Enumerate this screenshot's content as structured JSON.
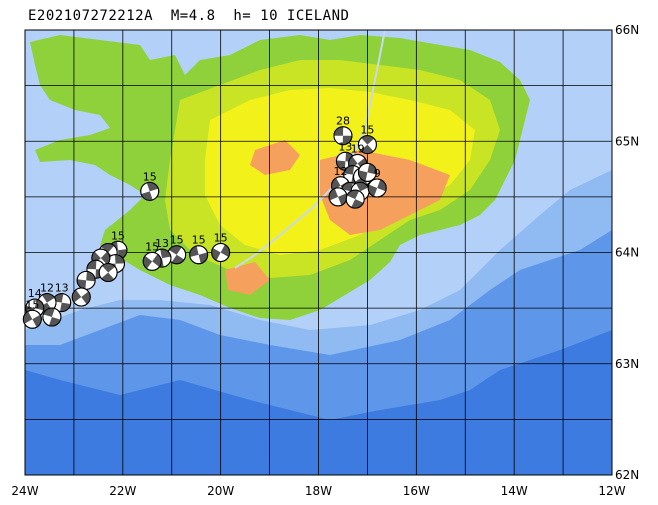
{
  "title": "E202107272212A  M=4.8  h= 10 ICELAND",
  "map": {
    "lon_range": [
      -24,
      -12
    ],
    "lat_range": [
      62,
      66
    ],
    "lon_labels": [
      "24W",
      "22W",
      "20W",
      "18W",
      "16W",
      "14W",
      "12W"
    ],
    "lat_labels": [
      "66N",
      "65N",
      "64N",
      "63N",
      "62N"
    ],
    "grid_lon_step_deg": 1,
    "grid_lat_step_deg": 0.5,
    "colors": {
      "deep_ocean": "#3d7be0",
      "mid_ocean": "#5e97ea",
      "shelf": "#8fbaf2",
      "shallow": "#b3d1f8",
      "lowland": "#8ed13a",
      "upland": "#c9e424",
      "highland": "#f2f21a",
      "peak": "#f6a05e",
      "grid": "#000000"
    }
  },
  "events": [
    {
      "depth": "28",
      "lon": -17.5,
      "lat": 65.05
    },
    {
      "depth": "15",
      "lon": -17.0,
      "lat": 64.97
    },
    {
      "depth": "13",
      "lon": -17.45,
      "lat": 64.82
    },
    {
      "depth": "19",
      "lon": -17.2,
      "lat": 64.8
    },
    {
      "depth": "",
      "lon": -17.3,
      "lat": 64.7
    },
    {
      "depth": "",
      "lon": -17.1,
      "lat": 64.68
    },
    {
      "depth": "",
      "lon": -17.0,
      "lat": 64.72
    },
    {
      "depth": "12",
      "lon": -17.55,
      "lat": 64.6
    },
    {
      "depth": "",
      "lon": -17.35,
      "lat": 64.55
    },
    {
      "depth": "",
      "lon": -17.15,
      "lat": 64.55
    },
    {
      "depth": "9",
      "lon": -16.8,
      "lat": 64.58
    },
    {
      "depth": "",
      "lon": -17.6,
      "lat": 64.5
    },
    {
      "depth": "",
      "lon": -17.25,
      "lat": 64.48
    },
    {
      "depth": "15",
      "lon": -21.45,
      "lat": 64.55
    },
    {
      "depth": "15",
      "lon": -20.0,
      "lat": 64.0
    },
    {
      "depth": "15",
      "lon": -20.45,
      "lat": 63.98
    },
    {
      "depth": "15",
      "lon": -20.9,
      "lat": 63.98
    },
    {
      "depth": "13",
      "lon": -21.2,
      "lat": 63.95
    },
    {
      "depth": "15",
      "lon": -21.4,
      "lat": 63.92
    },
    {
      "depth": "15",
      "lon": -22.1,
      "lat": 64.02
    },
    {
      "depth": "",
      "lon": -22.3,
      "lat": 64.0
    },
    {
      "depth": "",
      "lon": -22.15,
      "lat": 63.9
    },
    {
      "depth": "",
      "lon": -22.45,
      "lat": 63.95
    },
    {
      "depth": "",
      "lon": -22.55,
      "lat": 63.85
    },
    {
      "depth": "",
      "lon": -22.3,
      "lat": 63.82
    },
    {
      "depth": "",
      "lon": -22.75,
      "lat": 63.75
    },
    {
      "depth": "",
      "lon": -22.85,
      "lat": 63.6
    },
    {
      "depth": "13",
      "lon": -23.25,
      "lat": 63.55
    },
    {
      "depth": "12",
      "lon": -23.55,
      "lat": 63.55
    },
    {
      "depth": "14",
      "lon": -23.8,
      "lat": 63.5
    },
    {
      "depth": "15",
      "lon": -23.85,
      "lat": 63.4
    },
    {
      "depth": "",
      "lon": -23.45,
      "lat": 63.42
    }
  ]
}
